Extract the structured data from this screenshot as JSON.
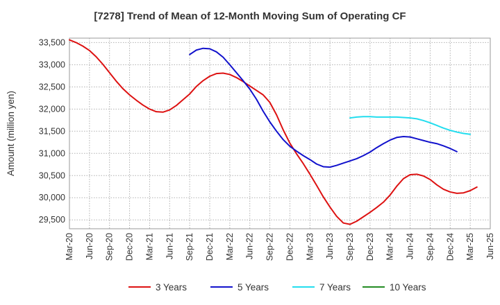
{
  "chart_data": {
    "type": "line",
    "title": "[7278]  Trend of Mean of 12-Month Moving Sum of Operating CF",
    "xlabel": "",
    "ylabel": "Amount (million yen)",
    "ylim": [
      29300,
      33600
    ],
    "y_ticks": [
      29500,
      30000,
      30500,
      31000,
      31500,
      32000,
      32500,
      33000,
      33500
    ],
    "y_tick_labels": [
      "29,500",
      "30,000",
      "30,500",
      "31,000",
      "31,500",
      "32,000",
      "32,500",
      "33,000",
      "33,500"
    ],
    "x_tick_labels": [
      "Mar-20",
      "Jun-20",
      "Sep-20",
      "Dec-20",
      "Mar-21",
      "Jun-21",
      "Sep-21",
      "Dec-21",
      "Mar-22",
      "Jun-22",
      "Sep-22",
      "Dec-22",
      "Mar-23",
      "Jun-23",
      "Sep-23",
      "Dec-23",
      "Mar-24",
      "Jun-24",
      "Sep-24",
      "Dec-24",
      "Mar-25",
      "Jun-25"
    ],
    "x_range_months": [
      0,
      63
    ],
    "grid": true,
    "legend_position": "bottom",
    "series": [
      {
        "name": "3 Years",
        "color": "#dd1111",
        "start_month": 0,
        "values": [
          33560,
          33500,
          33420,
          33320,
          33180,
          33010,
          32820,
          32630,
          32460,
          32320,
          32200,
          32090,
          32000,
          31940,
          31930,
          31980,
          32080,
          32210,
          32340,
          32510,
          32640,
          32740,
          32800,
          32810,
          32780,
          32710,
          32620,
          32520,
          32420,
          32320,
          32150,
          31870,
          31530,
          31230,
          30990,
          30770,
          30530,
          30280,
          30020,
          29790,
          29580,
          29430,
          29400,
          29470,
          29570,
          29670,
          29780,
          29900,
          30060,
          30260,
          30430,
          30520,
          30530,
          30490,
          30410,
          30290,
          30190,
          30130,
          30100,
          30110,
          30160,
          30240
        ]
      },
      {
        "name": "5 Years",
        "color": "#1111cc",
        "start_month": 18,
        "values": [
          33230,
          33330,
          33370,
          33360,
          33290,
          33170,
          33000,
          32820,
          32640,
          32450,
          32220,
          31950,
          31710,
          31500,
          31310,
          31160,
          31050,
          30950,
          30860,
          30760,
          30700,
          30690,
          30730,
          30780,
          30830,
          30880,
          30950,
          31030,
          31130,
          31220,
          31300,
          31360,
          31380,
          31370,
          31330,
          31290,
          31250,
          31220,
          31170,
          31110,
          31040
        ]
      },
      {
        "name": "7 Years",
        "color": "#22ddee",
        "start_month": 42,
        "values": [
          31800,
          31820,
          31830,
          31830,
          31820,
          31820,
          31820,
          31820,
          31810,
          31800,
          31780,
          31740,
          31690,
          31630,
          31570,
          31520,
          31480,
          31450,
          31430
        ]
      },
      {
        "name": "10 Years",
        "color": "#228b22",
        "start_month": 0,
        "values": []
      }
    ]
  }
}
